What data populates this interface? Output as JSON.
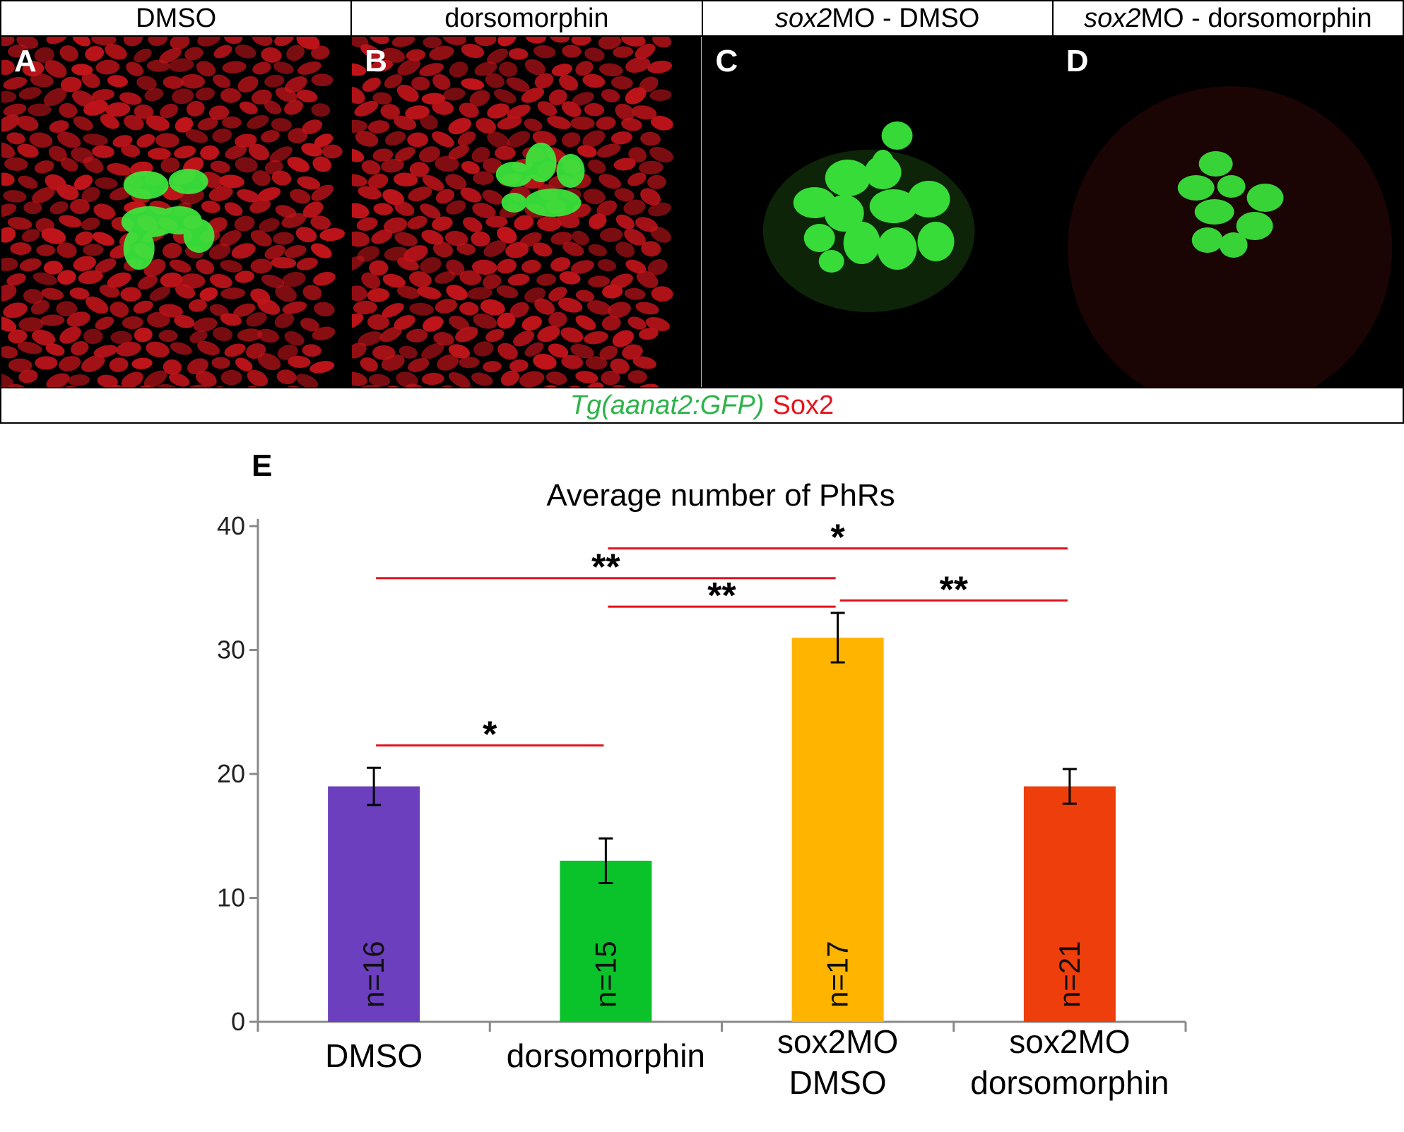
{
  "figure": {
    "headers": [
      {
        "plain": "DMSO",
        "italic": ""
      },
      {
        "plain": "dorsomorphin",
        "italic": ""
      },
      {
        "italic": "sox2",
        "plain": "MO - DMSO"
      },
      {
        "italic": "sox2",
        "plain": "MO - dorsomorphin"
      }
    ],
    "panel_letters": [
      "A",
      "B",
      "C",
      "D"
    ],
    "legend_green": "Tg(aanat2:GFP)",
    "legend_red": "Sox2",
    "colors": {
      "red_channel": "#c0141a",
      "green_channel": "#39e83c",
      "background": "#000000"
    }
  },
  "chart_data": {
    "type": "bar",
    "panel_letter": "E",
    "title": "Average number of PhRs",
    "categories": [
      [
        "DMSO"
      ],
      [
        "dorsomorphin"
      ],
      [
        "sox2MO",
        "DMSO"
      ],
      [
        "sox2MO",
        "dorsomorphin"
      ]
    ],
    "values": [
      19,
      13,
      31,
      19
    ],
    "errors": [
      1.5,
      1.8,
      2.0,
      1.4
    ],
    "n_labels": [
      "n=16",
      "n=15",
      "n=17",
      "n=21"
    ],
    "colors": [
      "#6b3fbe",
      "#0ac22a",
      "#ffb400",
      "#ee3e0b"
    ],
    "ylim": [
      0,
      40
    ],
    "yticks": [
      0,
      10,
      20,
      30,
      40
    ],
    "significance": [
      {
        "from": 0,
        "to": 1,
        "label": "*",
        "y": 22.3
      },
      {
        "from": 0,
        "to": 2,
        "label": "**",
        "y": 35.8
      },
      {
        "from": 1,
        "to": 2,
        "label": "**",
        "y": 33.5
      },
      {
        "from": 1,
        "to": 3,
        "label": "*",
        "y": 38.2
      },
      {
        "from": 2,
        "to": 3,
        "label": "**",
        "y": 34.0
      }
    ],
    "sig_line_color": "#e0141c"
  }
}
